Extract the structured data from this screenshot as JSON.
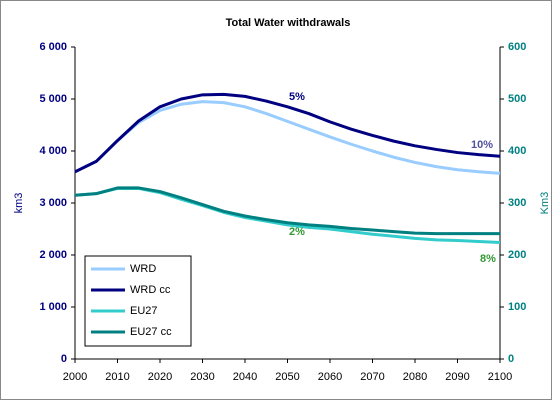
{
  "chart_data": {
    "type": "line",
    "title": "Total Water withdrawals",
    "y_label": "km3",
    "y2_label": "Km3",
    "x": [
      2000,
      2005,
      2010,
      2015,
      2020,
      2025,
      2030,
      2035,
      2040,
      2045,
      2050,
      2055,
      2060,
      2065,
      2070,
      2075,
      2080,
      2085,
      2090,
      2095,
      2100
    ],
    "xlim": [
      2000,
      2100
    ],
    "xticks": [
      2000,
      2010,
      2020,
      2030,
      2040,
      2050,
      2060,
      2070,
      2080,
      2090,
      2100
    ],
    "ylim": [
      0,
      6000
    ],
    "yticks": [
      0,
      {
        "value": 1000,
        "label": "1 000"
      },
      {
        "value": 2000,
        "label": "2 000"
      },
      {
        "value": 3000,
        "label": "3 000"
      },
      {
        "value": 4000,
        "label": "4 000"
      },
      {
        "value": 5000,
        "label": "5 000"
      },
      {
        "value": 6000,
        "label": "6 000"
      }
    ],
    "y2lim": [
      0,
      600
    ],
    "y2ticks": [
      0,
      100,
      200,
      300,
      400,
      500,
      600
    ],
    "grid": false,
    "legend": "lower left",
    "series": [
      {
        "name": "WRD",
        "color": "#99ccff",
        "values": [
          3600,
          3800,
          4200,
          4550,
          4780,
          4900,
          4950,
          4930,
          4850,
          4720,
          4570,
          4420,
          4270,
          4130,
          4000,
          3880,
          3780,
          3700,
          3640,
          3600,
          3570
        ]
      },
      {
        "name": "WRD cc",
        "color": "#000080",
        "values": [
          3600,
          3800,
          4200,
          4580,
          4850,
          5000,
          5080,
          5090,
          5050,
          4960,
          4850,
          4720,
          4560,
          4420,
          4300,
          4190,
          4100,
          4030,
          3970,
          3930,
          3900
        ]
      },
      {
        "name": "EU27",
        "color": "#33cccc",
        "axis": "y2",
        "values": [
          315,
          318,
          328,
          328,
          320,
          307,
          295,
          282,
          272,
          265,
          258,
          253,
          250,
          245,
          240,
          236,
          232,
          229,
          228,
          226,
          224
        ]
      },
      {
        "name": "EU27 cc",
        "color": "#008080",
        "axis": "y2",
        "values": [
          315,
          318,
          329,
          329,
          322,
          310,
          297,
          284,
          275,
          268,
          262,
          258,
          255,
          251,
          248,
          245,
          242,
          241,
          241,
          241,
          241
        ]
      }
    ],
    "annotations": [
      {
        "text": "5%",
        "color": "#000080"
      },
      {
        "text": "10%",
        "color": "#5050a0"
      },
      {
        "text": "2%",
        "color": "#339933"
      },
      {
        "text": "8%",
        "color": "#339933"
      }
    ]
  }
}
